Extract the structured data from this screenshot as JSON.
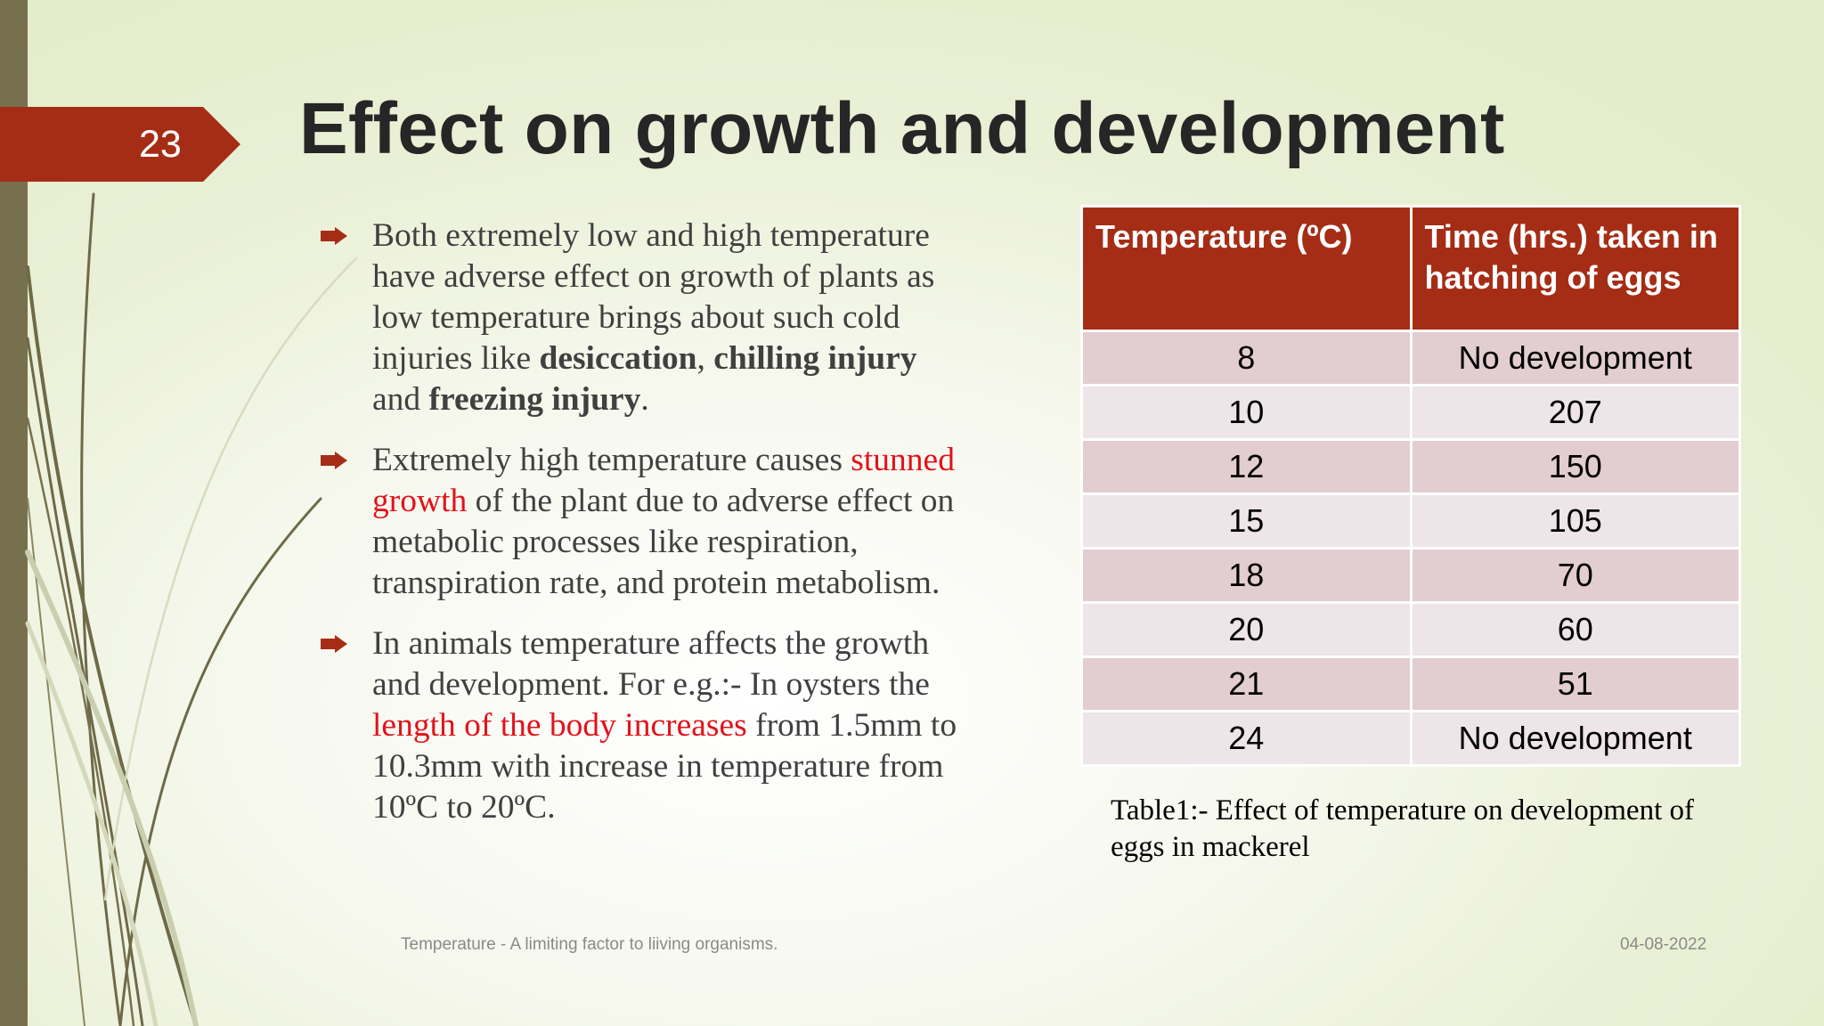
{
  "slide": {
    "number": "23",
    "title": "Effect on growth and development",
    "footer": "Temperature - A limiting factor to liiving organisms.",
    "date": "04-08-2022",
    "accent_color": "#a52d16",
    "highlight_color": "#e3121b"
  },
  "bullets": [
    {
      "p1": "Both extremely low and high temperature have adverse effect on growth of plants as low temperature brings about such cold injuries like ",
      "b1": "desiccation",
      "p2": ", ",
      "b2": "chilling injury",
      "p3": " and ",
      "b3": "freezing injury",
      "p4": "."
    },
    {
      "p1": "Extremely high temperature causes ",
      "red": "stunned growth",
      "p2": " of the plant due to adverse effect on  metabolic processes like respiration, transpiration rate, and protein metabolism."
    },
    {
      "p1": "In animals temperature affects the growth and development. For e.g.:- In oysters the ",
      "red": "length of the body increases",
      "p2": " from 1.5mm to 10.3mm with increase in temperature from 10ºC to 20ºC."
    }
  ],
  "table": {
    "headers": [
      "Temperature (ºC)",
      "Time (hrs.) taken in hatching of eggs"
    ],
    "rows": [
      [
        "8",
        "No development"
      ],
      [
        "10",
        "207"
      ],
      [
        "12",
        "150"
      ],
      [
        "15",
        "105"
      ],
      [
        "18",
        "70"
      ],
      [
        "20",
        "60"
      ],
      [
        "21",
        "51"
      ],
      [
        "24",
        "No development"
      ]
    ],
    "caption": "Table1:- Effect of temperature on development of eggs in mackerel"
  }
}
